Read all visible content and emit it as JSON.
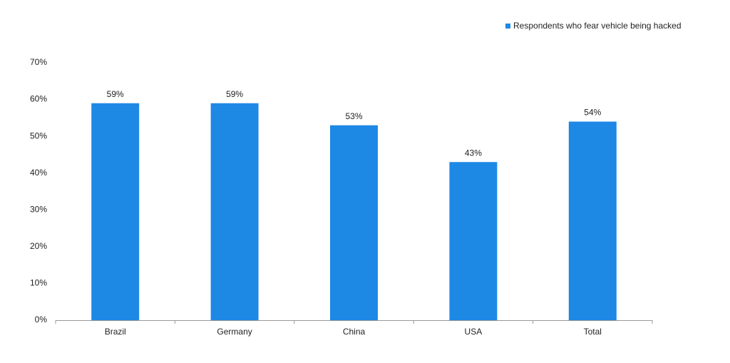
{
  "chart_data": {
    "type": "bar",
    "categories": [
      "Brazil",
      "Germany",
      "China",
      "USA",
      "Total"
    ],
    "series": [
      {
        "name": "Respondents who fear vehicle being hacked",
        "color": "#1e88e5",
        "values": [
          59,
          59,
          53,
          43,
          54
        ],
        "value_labels": [
          "59%",
          "59%",
          "53%",
          "43%",
          "54%"
        ]
      }
    ],
    "ylim": [
      0,
      70
    ],
    "yticks": [
      {
        "value": 0,
        "label": "0%"
      },
      {
        "value": 10,
        "label": "10%"
      },
      {
        "value": 20,
        "label": "20%"
      },
      {
        "value": 30,
        "label": "30%"
      },
      {
        "value": 40,
        "label": "40%"
      },
      {
        "value": 50,
        "label": "50%"
      },
      {
        "value": 60,
        "label": "60%"
      },
      {
        "value": 70,
        "label": "70%"
      }
    ],
    "grid": false,
    "legend": "top-right"
  }
}
